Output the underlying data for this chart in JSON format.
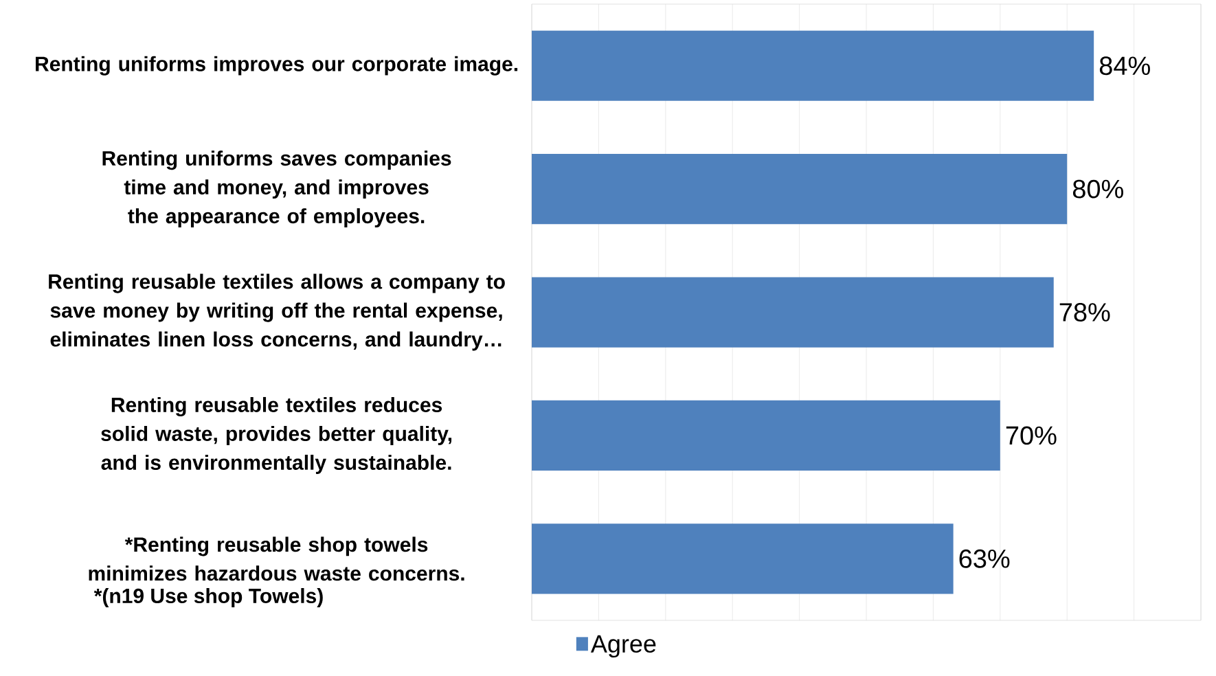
{
  "chart_data": {
    "type": "bar",
    "orientation": "horizontal",
    "categories": [
      "Renting uniforms improves our corporate image.",
      "Renting uniforms saves companies time and money, and improves the appearance of employees.",
      "Renting reusable textiles allows a company to save money by writing off the rental expense, eliminates linen loss concerns, and laundry…",
      "Renting reusable textiles reduces solid waste, provides better quality, and is environmentally sustainable.",
      "*Renting reusable shop towels minimizes hazardous waste concerns."
    ],
    "series": [
      {
        "name": "Agree",
        "color": "#4f81bd",
        "values": [
          84,
          80,
          78,
          70,
          63
        ],
        "value_labels": [
          "84%",
          "80%",
          "78%",
          "70%",
          "63%"
        ]
      }
    ],
    "xlim": [
      0,
      100
    ],
    "xticks": [
      {
        "value": 0,
        "label": null
      },
      {
        "value": 10,
        "label": null
      },
      {
        "value": 20,
        "label": null
      },
      {
        "value": 30,
        "label": null
      },
      {
        "value": 40,
        "label": null
      },
      {
        "value": 50,
        "label": null
      },
      {
        "value": 60,
        "label": null
      },
      {
        "value": 70,
        "label": null
      },
      {
        "value": 80,
        "label": null
      },
      {
        "value": 90,
        "label": null
      },
      {
        "value": 100,
        "label": null
      }
    ],
    "tick_labels": "y",
    "grid": "x",
    "legend": "bottom",
    "annotations": [
      "*(n19 Use shop Towels)"
    ]
  }
}
